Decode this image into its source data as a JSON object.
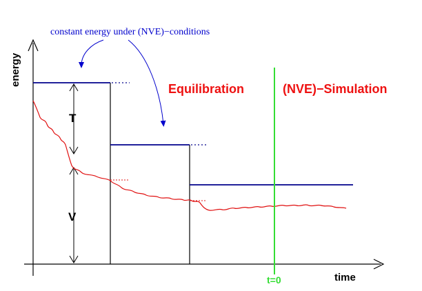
{
  "annotation": "constant energy under (NVE)−conditions",
  "axes": {
    "y_label": "energy",
    "x_label": "time"
  },
  "phases": {
    "equilibration": "Equilibration",
    "simulation": "(NVE)−Simulation"
  },
  "quantities": {
    "kinetic": "T",
    "potential": "V"
  },
  "marker": {
    "label": "t=0"
  },
  "colors": {
    "axis": "#000000",
    "energy_level": "#00008b",
    "trace": "#e01010",
    "phase_label": "#ee1111",
    "t0_line": "#33dd33",
    "annotation": "#0000cc",
    "arrow": "#0000cc"
  }
}
